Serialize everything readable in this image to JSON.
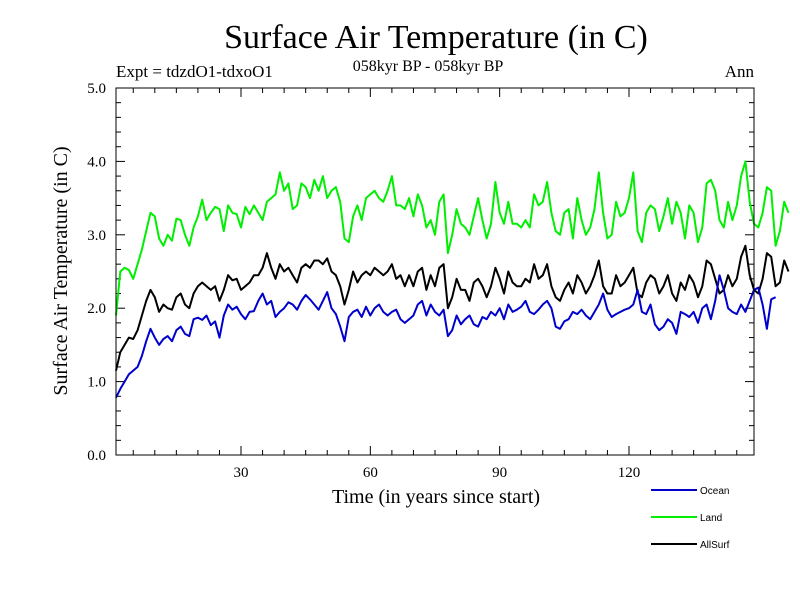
{
  "chart_data": {
    "type": "line",
    "title": "Surface Air Temperature (in C)",
    "subtitle": "058kyr BP - 058kyr BP",
    "left_label": "Expt = tdzdO1-tdxoO1",
    "right_label": "Ann",
    "xlabel": "Time (in years since start)",
    "ylabel": "Surface Air Temperature (in C)",
    "xlim": [
      1,
      149
    ],
    "ylim": [
      0,
      5
    ],
    "x_ticks": [
      30,
      60,
      90,
      120
    ],
    "y_ticks": [
      "0.0",
      "1.0",
      "2.0",
      "3.0",
      "4.0",
      "5.0"
    ],
    "series": [
      {
        "name": "Ocean",
        "color": "#0000cc",
        "values": [
          0.78,
          0.9,
          1.0,
          1.1,
          1.15,
          1.2,
          1.35,
          1.55,
          1.72,
          1.6,
          1.5,
          1.58,
          1.62,
          1.55,
          1.7,
          1.75,
          1.65,
          1.62,
          1.85,
          1.87,
          1.84,
          1.9,
          1.77,
          1.82,
          1.6,
          1.9,
          2.05,
          1.98,
          2.02,
          1.92,
          1.85,
          1.95,
          1.96,
          2.1,
          2.2,
          2.05,
          2.1,
          1.88,
          1.95,
          2.0,
          2.08,
          2.05,
          1.98,
          2.1,
          2.18,
          2.12,
          2.05,
          1.98,
          2.1,
          2.22,
          2.0,
          1.92,
          1.75,
          1.55,
          1.88,
          1.95,
          1.98,
          1.88,
          2.02,
          1.9,
          2.0,
          2.05,
          1.95,
          1.9,
          1.95,
          1.98,
          1.85,
          1.8,
          1.85,
          1.9,
          2.05,
          2.1,
          1.9,
          2.05,
          1.95,
          1.9,
          1.98,
          1.62,
          1.7,
          1.9,
          1.78,
          1.85,
          1.9,
          1.78,
          1.75,
          1.88,
          1.85,
          1.95,
          1.9,
          2.0,
          1.85,
          2.05,
          1.95,
          1.98,
          2.02,
          2.1,
          1.95,
          1.92,
          1.98,
          2.05,
          2.1,
          2.0,
          1.75,
          1.72,
          1.82,
          1.85,
          1.95,
          1.92,
          1.98,
          1.9,
          1.85,
          1.95,
          2.05,
          2.2,
          1.98,
          1.88,
          1.92,
          1.95,
          1.98,
          2.0,
          2.05,
          2.25,
          1.95,
          1.92,
          2.05,
          1.78,
          1.7,
          1.75,
          1.85,
          1.8,
          1.65,
          1.95,
          1.92,
          1.88,
          1.95,
          1.8,
          2.0,
          2.05,
          1.85,
          2.1,
          2.45,
          2.25,
          2.0,
          1.95,
          1.92,
          2.05,
          1.95,
          2.1,
          2.25,
          2.28,
          2.05,
          1.72,
          2.12,
          2.15
        ]
      },
      {
        "name": "Land",
        "color": "#00ee00",
        "values": [
          1.9,
          2.5,
          2.55,
          2.52,
          2.4,
          2.6,
          2.8,
          3.05,
          3.3,
          3.25,
          2.95,
          2.85,
          3.0,
          2.92,
          3.22,
          3.2,
          3.0,
          2.85,
          3.1,
          3.25,
          3.48,
          3.2,
          3.3,
          3.38,
          3.35,
          3.05,
          3.4,
          3.3,
          3.28,
          3.1,
          3.38,
          3.28,
          3.4,
          3.3,
          3.2,
          3.45,
          3.5,
          3.55,
          3.85,
          3.6,
          3.7,
          3.35,
          3.4,
          3.7,
          3.65,
          3.5,
          3.75,
          3.6,
          3.8,
          3.5,
          3.6,
          3.65,
          3.45,
          2.95,
          2.9,
          3.25,
          3.4,
          3.2,
          3.5,
          3.55,
          3.6,
          3.5,
          3.45,
          3.6,
          3.8,
          3.4,
          3.4,
          3.35,
          3.5,
          3.25,
          3.55,
          3.4,
          3.1,
          3.2,
          3.0,
          3.45,
          3.55,
          2.75,
          3.0,
          3.35,
          3.15,
          3.1,
          3.0,
          3.25,
          3.5,
          3.2,
          2.95,
          3.15,
          3.72,
          3.3,
          3.15,
          3.45,
          3.15,
          3.15,
          3.1,
          3.2,
          3.1,
          3.55,
          3.4,
          3.45,
          3.72,
          3.3,
          3.05,
          3.0,
          3.3,
          3.35,
          2.95,
          3.5,
          3.2,
          3.0,
          3.1,
          3.35,
          3.85,
          3.3,
          2.95,
          3.0,
          3.45,
          3.25,
          3.3,
          3.5,
          3.85,
          3.05,
          2.9,
          3.3,
          3.4,
          3.35,
          3.05,
          3.25,
          3.5,
          3.15,
          3.45,
          3.3,
          2.95,
          3.4,
          3.3,
          2.9,
          3.1,
          3.7,
          3.75,
          3.6,
          3.2,
          3.1,
          3.45,
          3.2,
          3.4,
          3.8,
          4.0,
          3.45,
          3.15,
          3.1,
          3.3,
          3.65,
          3.6,
          2.85,
          3.05,
          3.45,
          3.3
        ]
      },
      {
        "name": "AllSurf",
        "color": "#000000",
        "values": [
          1.15,
          1.4,
          1.5,
          1.6,
          1.58,
          1.7,
          1.9,
          2.1,
          2.25,
          2.15,
          1.95,
          2.05,
          2.0,
          1.98,
          2.15,
          2.2,
          2.05,
          2.0,
          2.2,
          2.3,
          2.35,
          2.3,
          2.25,
          2.3,
          2.1,
          2.25,
          2.45,
          2.38,
          2.4,
          2.25,
          2.3,
          2.35,
          2.45,
          2.45,
          2.55,
          2.75,
          2.55,
          2.4,
          2.6,
          2.5,
          2.55,
          2.45,
          2.35,
          2.55,
          2.6,
          2.55,
          2.65,
          2.65,
          2.6,
          2.68,
          2.5,
          2.45,
          2.3,
          2.05,
          2.25,
          2.5,
          2.35,
          2.45,
          2.5,
          2.45,
          2.55,
          2.5,
          2.45,
          2.5,
          2.6,
          2.4,
          2.45,
          2.3,
          2.45,
          2.3,
          2.5,
          2.55,
          2.25,
          2.45,
          2.3,
          2.55,
          2.6,
          2.0,
          2.15,
          2.4,
          2.25,
          2.25,
          2.1,
          2.35,
          2.4,
          2.3,
          2.15,
          2.3,
          2.55,
          2.4,
          2.2,
          2.5,
          2.35,
          2.3,
          2.3,
          2.4,
          2.35,
          2.6,
          2.4,
          2.45,
          2.6,
          2.3,
          2.15,
          2.1,
          2.25,
          2.35,
          2.2,
          2.45,
          2.35,
          2.2,
          2.3,
          2.45,
          2.65,
          2.3,
          2.2,
          2.2,
          2.45,
          2.3,
          2.35,
          2.45,
          2.55,
          2.2,
          2.15,
          2.35,
          2.45,
          2.4,
          2.2,
          2.3,
          2.45,
          2.2,
          2.1,
          2.35,
          2.25,
          2.45,
          2.35,
          2.15,
          2.3,
          2.65,
          2.6,
          2.4,
          2.2,
          2.25,
          2.45,
          2.3,
          2.4,
          2.7,
          2.85,
          2.45,
          2.25,
          2.2,
          2.4,
          2.75,
          2.7,
          2.3,
          2.35,
          2.65,
          2.5
        ]
      }
    ]
  }
}
